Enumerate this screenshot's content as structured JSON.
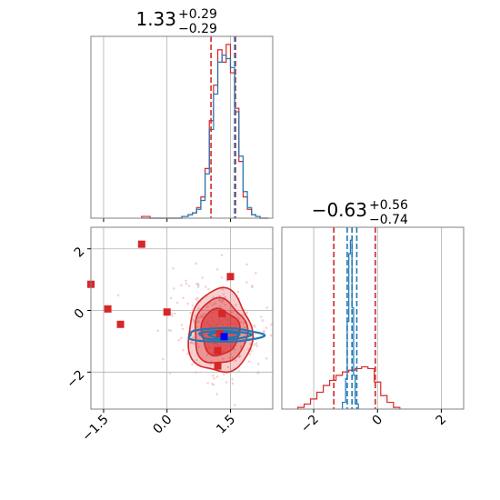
{
  "colors": {
    "red": "#d62728",
    "blue": "#1f77b4",
    "grid": "#b0b0b0",
    "frame": "#808080"
  },
  "chart_data": [
    {
      "type": "histogram",
      "panel": "top-left",
      "title": {
        "main": "1.33",
        "sup": "+0.29",
        "sub": "−0.29"
      },
      "xlim": [
        -1.8,
        2.5
      ],
      "grid": true,
      "quantile_lines_red": [
        1.04,
        1.62
      ],
      "quantile_lines_blue": [
        1.6
      ],
      "bins": [
        -0.6,
        -0.4,
        -0.2,
        0.0,
        0.2,
        0.35,
        0.5,
        0.6,
        0.7,
        0.8,
        0.9,
        1.0,
        1.1,
        1.2,
        1.3,
        1.4,
        1.5,
        1.6,
        1.7,
        1.8,
        1.9,
        2.0,
        2.1,
        2.2,
        2.3,
        2.4
      ],
      "series": [
        {
          "name": "red",
          "values": [
            0.01,
            0.0,
            0.0,
            0.0,
            0.0,
            0.01,
            0.02,
            0.03,
            0.06,
            0.12,
            0.28,
            0.55,
            0.75,
            0.95,
            0.88,
            0.98,
            0.82,
            0.62,
            0.32,
            0.12,
            0.05,
            0.02,
            0.01,
            0.0,
            0.0
          ]
        },
        {
          "name": "blue",
          "values": [
            0.0,
            0.0,
            0.0,
            0.0,
            0.0,
            0.01,
            0.02,
            0.03,
            0.05,
            0.1,
            0.25,
            0.5,
            0.7,
            0.88,
            0.92,
            0.9,
            0.85,
            0.6,
            0.35,
            0.15,
            0.06,
            0.02,
            0.01,
            0.0,
            0.0
          ]
        }
      ]
    },
    {
      "type": "scatter",
      "panel": "bottom-left",
      "xlim": [
        -1.8,
        2.5
      ],
      "ylim": [
        -3.2,
        2.7
      ],
      "grid": true,
      "x_ticks": [
        -1.5,
        0.0,
        1.5
      ],
      "x_tick_labels": [
        "−1.5",
        "0.0",
        "1.5"
      ],
      "y_ticks": [
        2,
        0,
        -2
      ],
      "y_tick_labels": [
        "2",
        "0",
        "−2"
      ],
      "red_points": [
        [
          -1.8,
          0.85
        ],
        [
          -1.4,
          0.05
        ],
        [
          -1.1,
          -0.45
        ],
        [
          -0.6,
          2.15
        ],
        [
          0.0,
          -0.05
        ],
        [
          1.5,
          1.1
        ],
        [
          1.3,
          -0.1
        ],
        [
          1.25,
          -0.75
        ],
        [
          1.2,
          -1.3
        ],
        [
          1.2,
          -1.8
        ]
      ],
      "blue_points": [
        [
          1.35,
          -0.85
        ]
      ],
      "contours": [
        {
          "color": "red",
          "fill": true,
          "center": [
            1.25,
            -0.7
          ],
          "r": [
            [
              0.75,
              1.35
            ],
            [
              0.62,
              1.05
            ],
            [
              0.45,
              0.75
            ]
          ]
        },
        {
          "color": "blue",
          "fill": false,
          "center": [
            1.35,
            -0.8
          ],
          "r": [
            [
              0.88,
              0.22
            ],
            [
              0.6,
              0.14
            ],
            [
              0.35,
              0.09
            ]
          ]
        }
      ]
    },
    {
      "type": "histogram",
      "panel": "bottom-right",
      "title": {
        "main": "−0.63",
        "sup": "+0.56",
        "sub": "−0.74"
      },
      "xlim": [
        -3.0,
        2.7
      ],
      "grid": true,
      "x_ticks": [
        -2,
        0,
        2
      ],
      "x_tick_labels": [
        "−2",
        "0",
        "2"
      ],
      "quantile_lines_red": [
        -1.37,
        -0.07
      ],
      "quantile_lines_blue": [
        -0.95,
        -0.8,
        -0.65
      ],
      "series": [
        {
          "name": "red",
          "bins": [
            -2.5,
            -2.3,
            -2.1,
            -1.9,
            -1.7,
            -1.5,
            -1.3,
            -1.1,
            -0.9,
            -0.7,
            -0.5,
            -0.3,
            -0.1,
            0.1,
            0.3,
            0.5,
            0.7
          ],
          "values": [
            0.01,
            0.03,
            0.06,
            0.1,
            0.14,
            0.17,
            0.2,
            0.22,
            0.23,
            0.24,
            0.25,
            0.24,
            0.16,
            0.08,
            0.04,
            0.01
          ]
        },
        {
          "name": "blue",
          "bins": [
            -1.1,
            -1.0,
            -0.95,
            -0.9,
            -0.85,
            -0.8,
            -0.75,
            -0.7,
            -0.6
          ],
          "values": [
            0.04,
            0.18,
            0.52,
            0.92,
            1.0,
            0.6,
            0.2,
            0.03
          ]
        }
      ]
    }
  ]
}
